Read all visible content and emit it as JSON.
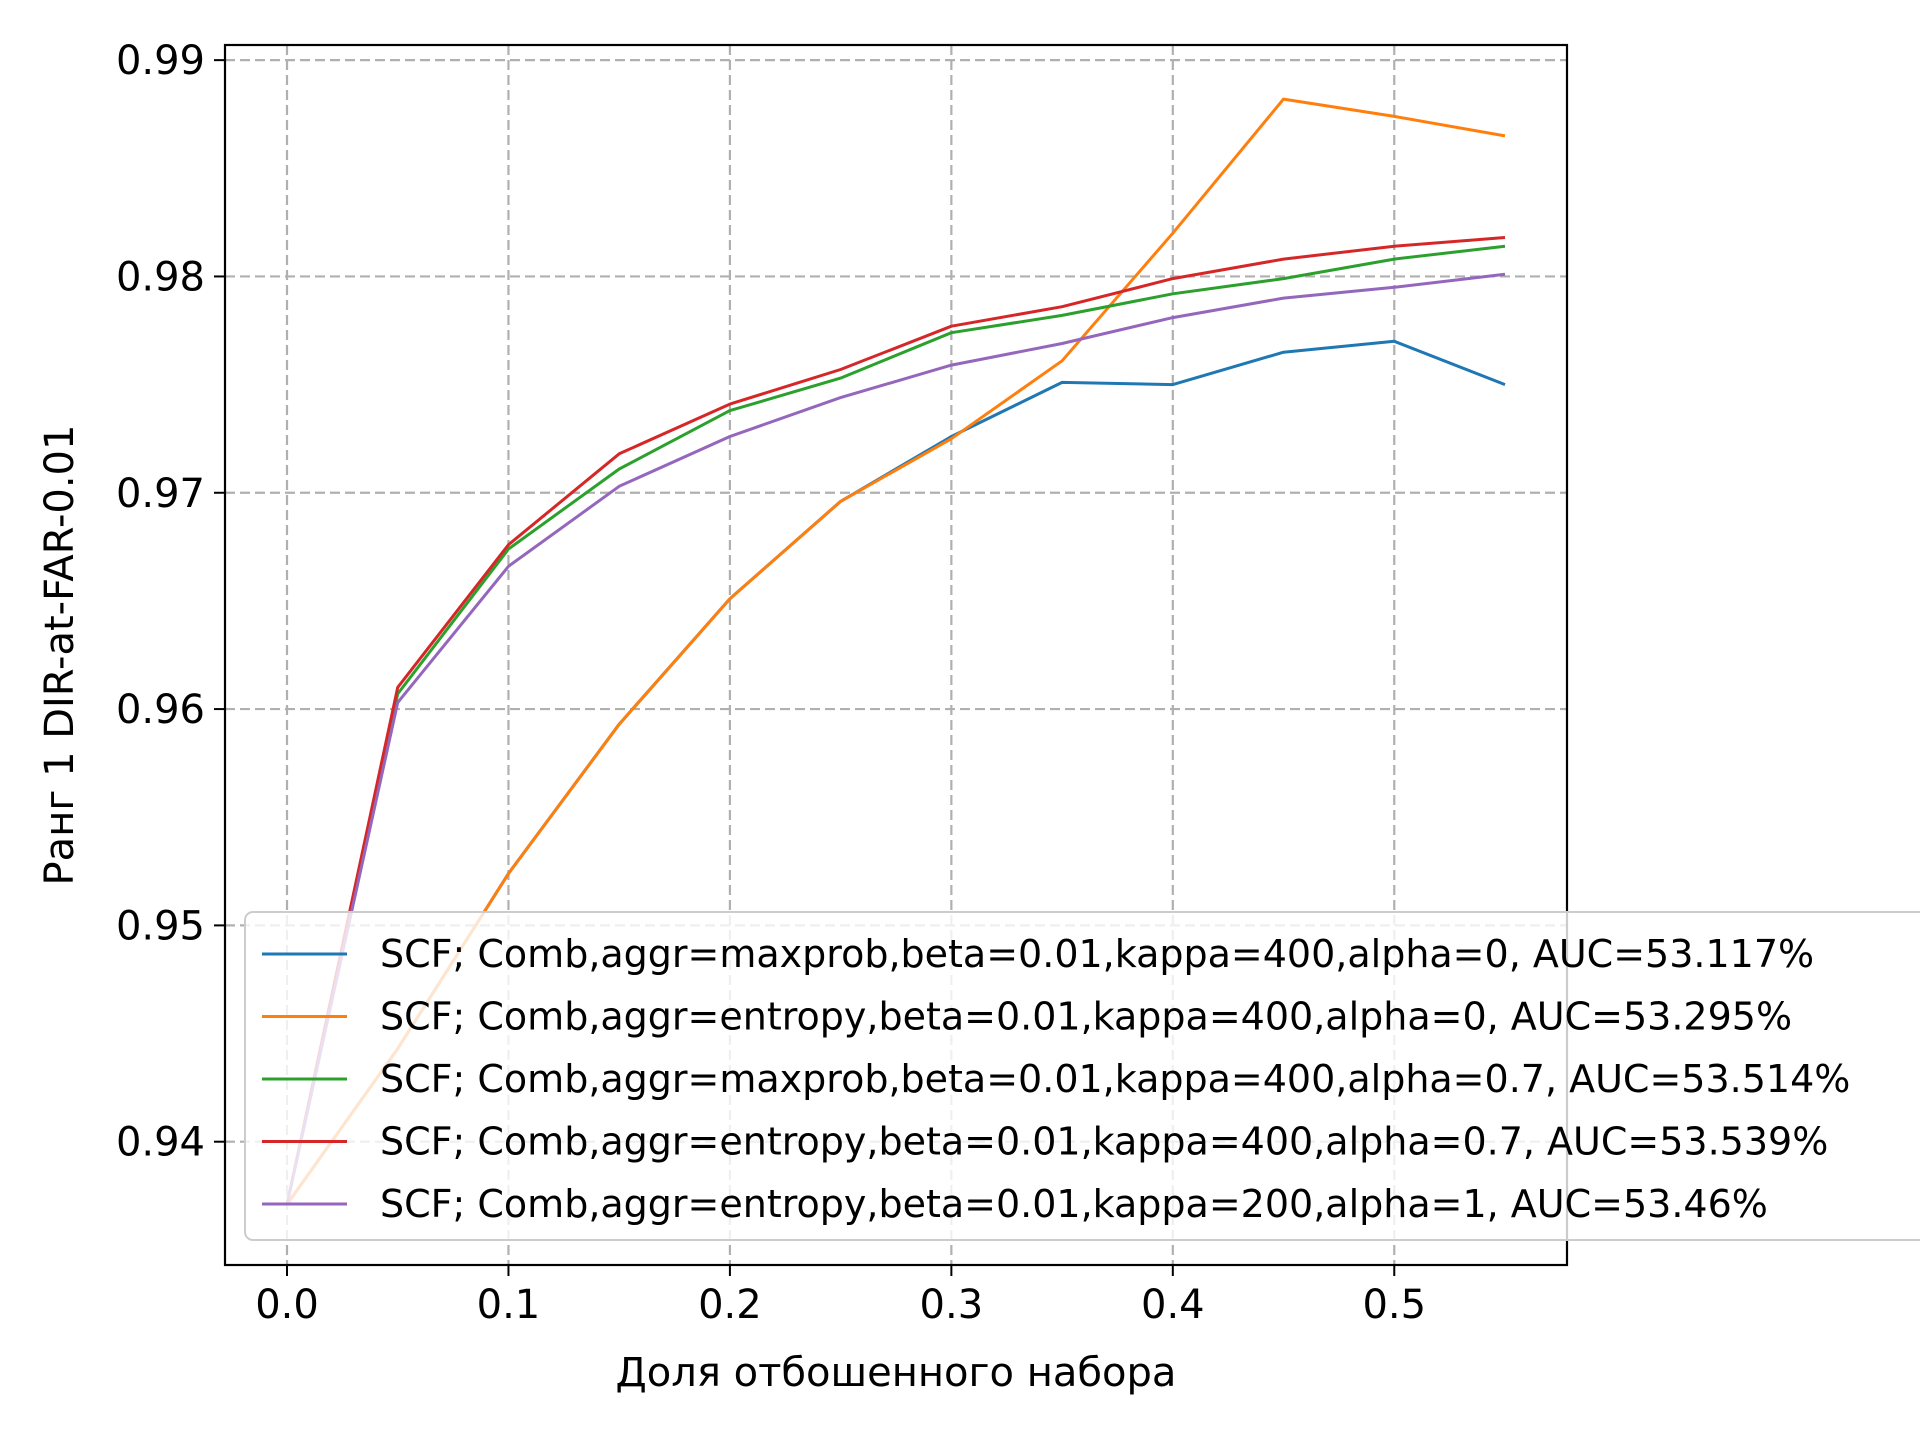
{
  "chart_data": {
    "type": "line",
    "xlabel": "Доля отбошенного набора",
    "ylabel": "Ранг 1 DIR-at-FAR-0.01",
    "xlim": [
      -0.028,
      0.578
    ],
    "ylim": [
      0.9343,
      0.9907
    ],
    "x_ticks": [
      0.0,
      0.1,
      0.2,
      0.3,
      0.4,
      0.5
    ],
    "x_tick_labels": [
      "0.0",
      "0.1",
      "0.2",
      "0.3",
      "0.4",
      "0.5"
    ],
    "y_ticks": [
      0.94,
      0.95,
      0.96,
      0.97,
      0.98,
      0.99
    ],
    "y_tick_labels": [
      "0.94",
      "0.95",
      "0.96",
      "0.97",
      "0.98",
      "0.99"
    ],
    "grid": true,
    "legend_position": "lower-right",
    "x": [
      0.0,
      0.05,
      0.1,
      0.15,
      0.2,
      0.25,
      0.3,
      0.35,
      0.4,
      0.45,
      0.5,
      0.55
    ],
    "series": [
      {
        "name": "SCF;  Comb,aggr=maxprob,beta=0.01,kappa=400,alpha=0, AUC=53.117%",
        "color": "#1f77b4",
        "values": [
          0.9371,
          0.9443,
          0.9524,
          0.9593,
          0.9651,
          0.9696,
          0.9726,
          0.9751,
          0.975,
          0.9765,
          0.977,
          0.975
        ]
      },
      {
        "name": "SCF;  Comb,aggr=entropy,beta=0.01,kappa=400,alpha=0, AUC=53.295%",
        "color": "#ff7f0e",
        "values": [
          0.9371,
          0.9443,
          0.9524,
          0.9593,
          0.9651,
          0.9696,
          0.9725,
          0.9761,
          0.982,
          0.9882,
          0.9874,
          0.9865
        ]
      },
      {
        "name": "SCF;  Comb,aggr=maxprob,beta=0.01,kappa=400,alpha=0.7, AUC=53.514%",
        "color": "#2ca02c",
        "values": [
          0.9371,
          0.9607,
          0.9674,
          0.9711,
          0.9738,
          0.9753,
          0.9774,
          0.9782,
          0.9792,
          0.9799,
          0.9808,
          0.9814
        ]
      },
      {
        "name": "SCF;  Comb,aggr=entropy,beta=0.01,kappa=400,alpha=0.7, AUC=53.539%",
        "color": "#d62728",
        "values": [
          0.9371,
          0.961,
          0.9676,
          0.9718,
          0.9741,
          0.9757,
          0.9777,
          0.9786,
          0.9799,
          0.9808,
          0.9814,
          0.9818
        ]
      },
      {
        "name": "SCF;  Comb,aggr=entropy,beta=0.01,kappa=200,alpha=1, AUC=53.46%",
        "color": "#9467bd",
        "values": [
          0.9371,
          0.9603,
          0.9666,
          0.9703,
          0.9726,
          0.9744,
          0.9759,
          0.9769,
          0.9781,
          0.979,
          0.9795,
          0.9801
        ]
      }
    ]
  }
}
